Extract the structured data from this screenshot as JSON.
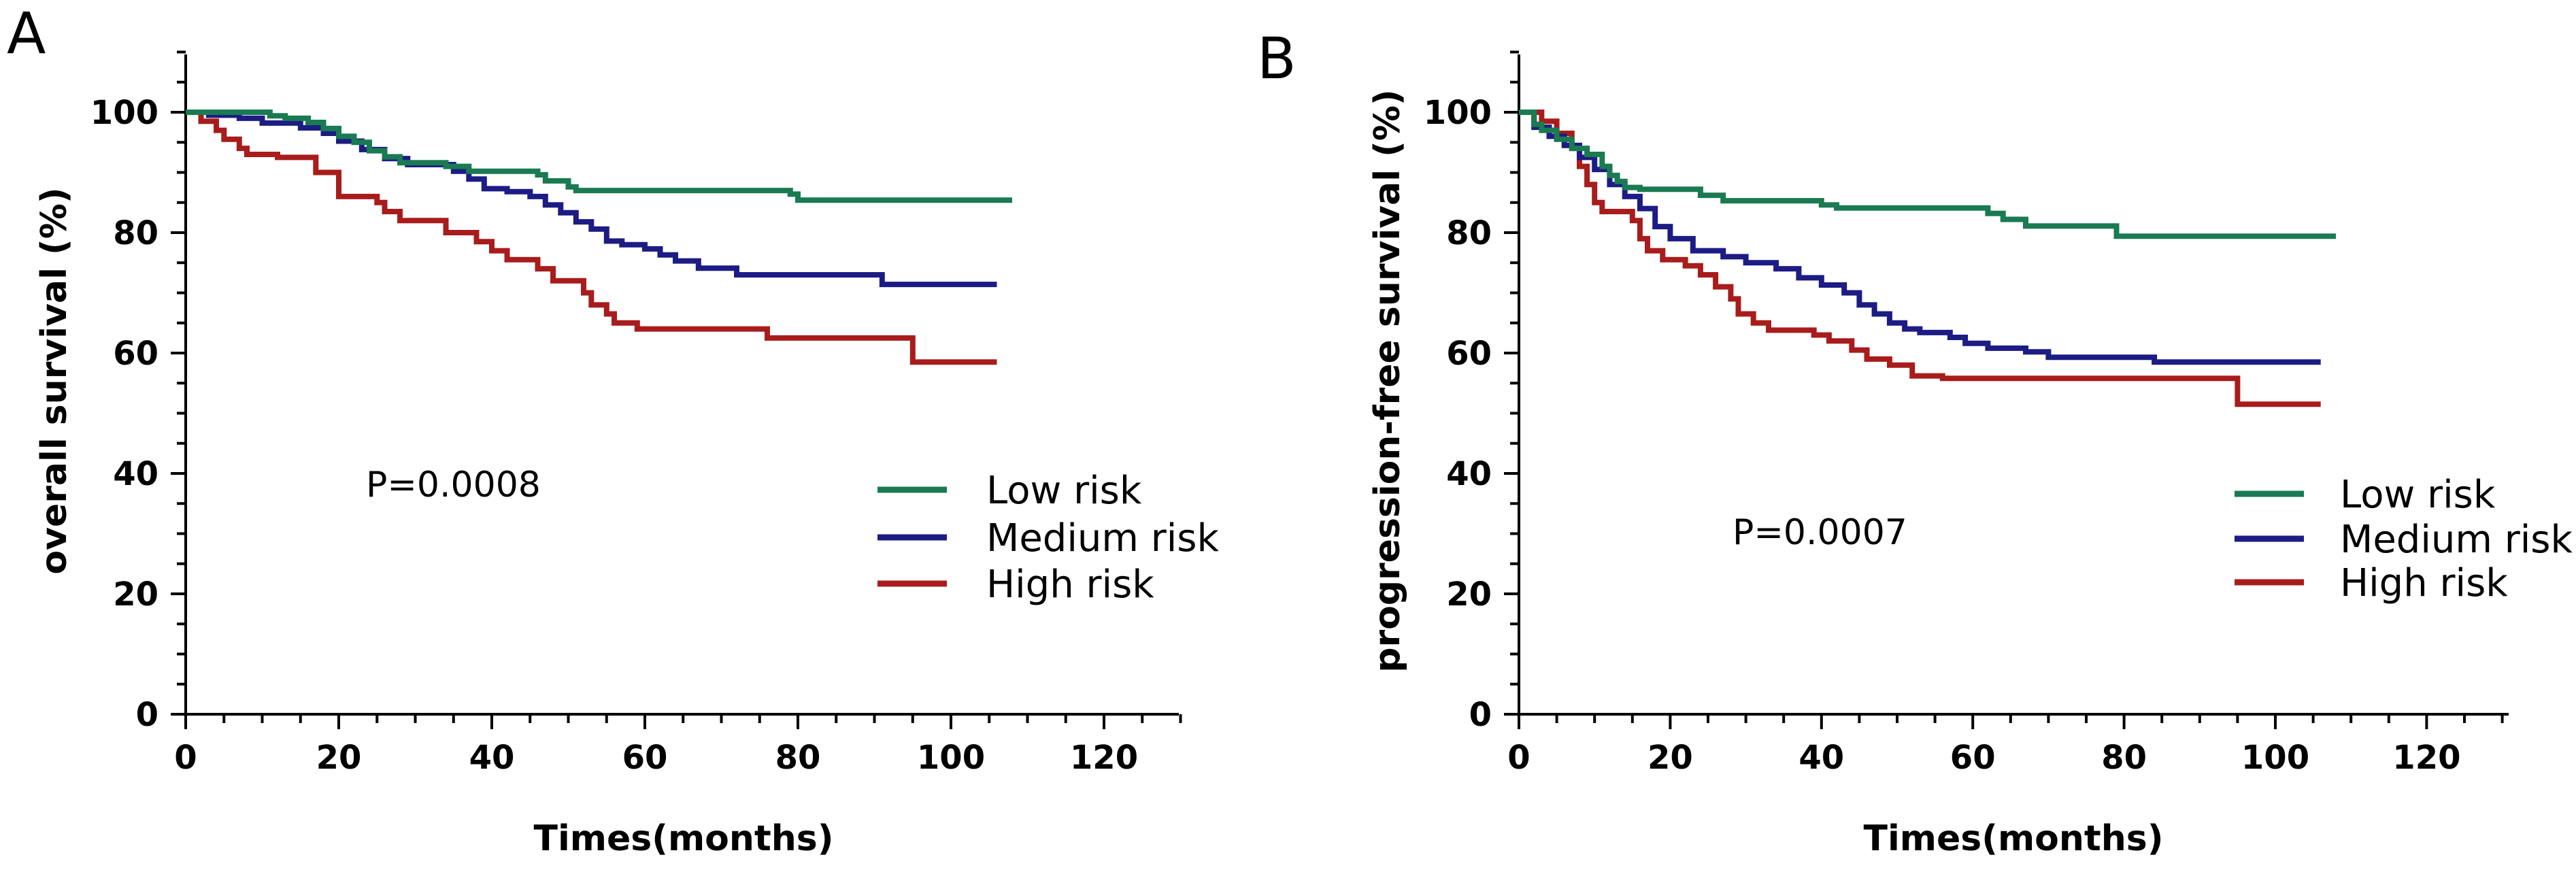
{
  "colors": {
    "low": "#1a7a52",
    "medium": "#1c1c84",
    "high": "#a81c1c",
    "axis": "#000000"
  },
  "chart_data": [
    {
      "panel": "A",
      "type": "line",
      "step": true,
      "title": "",
      "xlabel": "Times(months)",
      "ylabel": "overall survival (%)",
      "xlim": [
        0,
        130
      ],
      "ylim": [
        0,
        110
      ],
      "xticks": [
        0,
        20,
        40,
        60,
        80,
        100,
        120
      ],
      "yticks": [
        0,
        20,
        40,
        60,
        80,
        100
      ],
      "annotation": "P=0.0008",
      "legend": [
        "Low risk",
        "Medium risk",
        "High risk"
      ],
      "series": [
        {
          "name": "Low risk",
          "color_key": "low",
          "points": [
            [
              0,
              100
            ],
            [
              10,
              100
            ],
            [
              11,
              99.4
            ],
            [
              13,
              99
            ],
            [
              16,
              98.3
            ],
            [
              18,
              97.3
            ],
            [
              20,
              96
            ],
            [
              22,
              95
            ],
            [
              24,
              93.6
            ],
            [
              26,
              92.6
            ],
            [
              28,
              91.6
            ],
            [
              34,
              91
            ],
            [
              37,
              90.2
            ],
            [
              46,
              89.6
            ],
            [
              47,
              88.6
            ],
            [
              50,
              87.6
            ],
            [
              51,
              87
            ],
            [
              79,
              86.4
            ],
            [
              80,
              85.4
            ],
            [
              108,
              85.4
            ]
          ]
        },
        {
          "name": "Medium risk",
          "color_key": "medium",
          "points": [
            [
              0,
              100
            ],
            [
              3,
              99.5
            ],
            [
              7,
              99
            ],
            [
              10,
              98.2
            ],
            [
              15,
              97.4
            ],
            [
              18,
              96.5
            ],
            [
              20,
              95.2
            ],
            [
              23,
              93.8
            ],
            [
              26,
              92.3
            ],
            [
              29,
              91.3
            ],
            [
              35,
              90.2
            ],
            [
              37,
              88.9
            ],
            [
              39,
              87.3
            ],
            [
              42,
              86.8
            ],
            [
              45,
              86
            ],
            [
              47,
              84.6
            ],
            [
              49,
              83.3
            ],
            [
              51,
              81.8
            ],
            [
              53,
              80.6
            ],
            [
              55,
              78.6
            ],
            [
              57,
              78
            ],
            [
              60,
              77.3
            ],
            [
              62,
              76.3
            ],
            [
              64,
              75.3
            ],
            [
              67,
              74.1
            ],
            [
              72,
              73
            ],
            [
              91,
              71.4
            ],
            [
              106,
              71.4
            ]
          ]
        },
        {
          "name": "High risk",
          "color_key": "high",
          "points": [
            [
              0,
              100
            ],
            [
              2,
              98.5
            ],
            [
              4,
              97
            ],
            [
              5,
              95.5
            ],
            [
              7,
              94
            ],
            [
              8,
              93
            ],
            [
              12,
              92.5
            ],
            [
              17,
              90
            ],
            [
              20,
              86
            ],
            [
              25,
              85
            ],
            [
              26,
              83.5
            ],
            [
              28,
              82
            ],
            [
              34,
              80
            ],
            [
              38,
              78.5
            ],
            [
              40,
              77
            ],
            [
              42,
              75.5
            ],
            [
              46,
              74
            ],
            [
              48,
              72
            ],
            [
              52,
              70
            ],
            [
              53,
              68
            ],
            [
              55,
              66.5
            ],
            [
              56,
              65
            ],
            [
              59,
              64
            ],
            [
              76,
              62.5
            ],
            [
              95,
              58.5
            ],
            [
              106,
              58.5
            ]
          ]
        }
      ]
    },
    {
      "panel": "B",
      "type": "line",
      "step": true,
      "title": "",
      "xlabel": "Times(months)",
      "ylabel": "progression-free survival (%)",
      "xlim": [
        0,
        130
      ],
      "ylim": [
        0,
        110
      ],
      "xticks": [
        0,
        20,
        40,
        60,
        80,
        100,
        120
      ],
      "yticks": [
        0,
        20,
        40,
        60,
        80,
        100
      ],
      "annotation": "P=0.0007",
      "legend": [
        "Low risk",
        "Medium risk",
        "High risk"
      ],
      "series": [
        {
          "name": "Low risk",
          "color_key": "low",
          "points": [
            [
              0,
              100
            ],
            [
              2,
              98
            ],
            [
              3,
              97
            ],
            [
              5,
              95.5
            ],
            [
              7,
              94
            ],
            [
              9,
              93
            ],
            [
              11,
              91
            ],
            [
              12,
              89.5
            ],
            [
              13,
              88.5
            ],
            [
              14,
              87.5
            ],
            [
              16,
              87.2
            ],
            [
              24,
              86.2
            ],
            [
              27,
              85.3
            ],
            [
              40,
              84.6
            ],
            [
              42,
              84.1
            ],
            [
              62,
              83.2
            ],
            [
              64,
              82.2
            ],
            [
              67,
              81.1
            ],
            [
              79,
              79.4
            ],
            [
              108,
              79.4
            ]
          ]
        },
        {
          "name": "Medium risk",
          "color_key": "medium",
          "points": [
            [
              0,
              100
            ],
            [
              2,
              97.5
            ],
            [
              4,
              96
            ],
            [
              6,
              94.5
            ],
            [
              8,
              92.5
            ],
            [
              10,
              90.5
            ],
            [
              12,
              88
            ],
            [
              14,
              86
            ],
            [
              16,
              84
            ],
            [
              18,
              81
            ],
            [
              20,
              79
            ],
            [
              23,
              77
            ],
            [
              27,
              76
            ],
            [
              30,
              75
            ],
            [
              34,
              74
            ],
            [
              37,
              72.5
            ],
            [
              40,
              71.3
            ],
            [
              43,
              70
            ],
            [
              45,
              68
            ],
            [
              47,
              66.5
            ],
            [
              49,
              65
            ],
            [
              51,
              64
            ],
            [
              53,
              63.4
            ],
            [
              57,
              62.6
            ],
            [
              59,
              61.6
            ],
            [
              62,
              60.8
            ],
            [
              67,
              60.2
            ],
            [
              70,
              59.3
            ],
            [
              84,
              58.5
            ],
            [
              106,
              58.5
            ]
          ]
        },
        {
          "name": "High risk",
          "color_key": "high",
          "points": [
            [
              0,
              100
            ],
            [
              3,
              98.5
            ],
            [
              5,
              96.5
            ],
            [
              7,
              94
            ],
            [
              8,
              91
            ],
            [
              9,
              88
            ],
            [
              10,
              85
            ],
            [
              11,
              83.5
            ],
            [
              15,
              82
            ],
            [
              16,
              79
            ],
            [
              17,
              77
            ],
            [
              19,
              75.5
            ],
            [
              22,
              74.5
            ],
            [
              24,
              73
            ],
            [
              26,
              71
            ],
            [
              28,
              69
            ],
            [
              29,
              66.5
            ],
            [
              31,
              65
            ],
            [
              33,
              63.8
            ],
            [
              39,
              63
            ],
            [
              41,
              62
            ],
            [
              44,
              60.5
            ],
            [
              46,
              59
            ],
            [
              49,
              58
            ],
            [
              52,
              56.2
            ],
            [
              56,
              55.8
            ],
            [
              95,
              51.5
            ],
            [
              106,
              51.5
            ]
          ]
        }
      ]
    }
  ]
}
